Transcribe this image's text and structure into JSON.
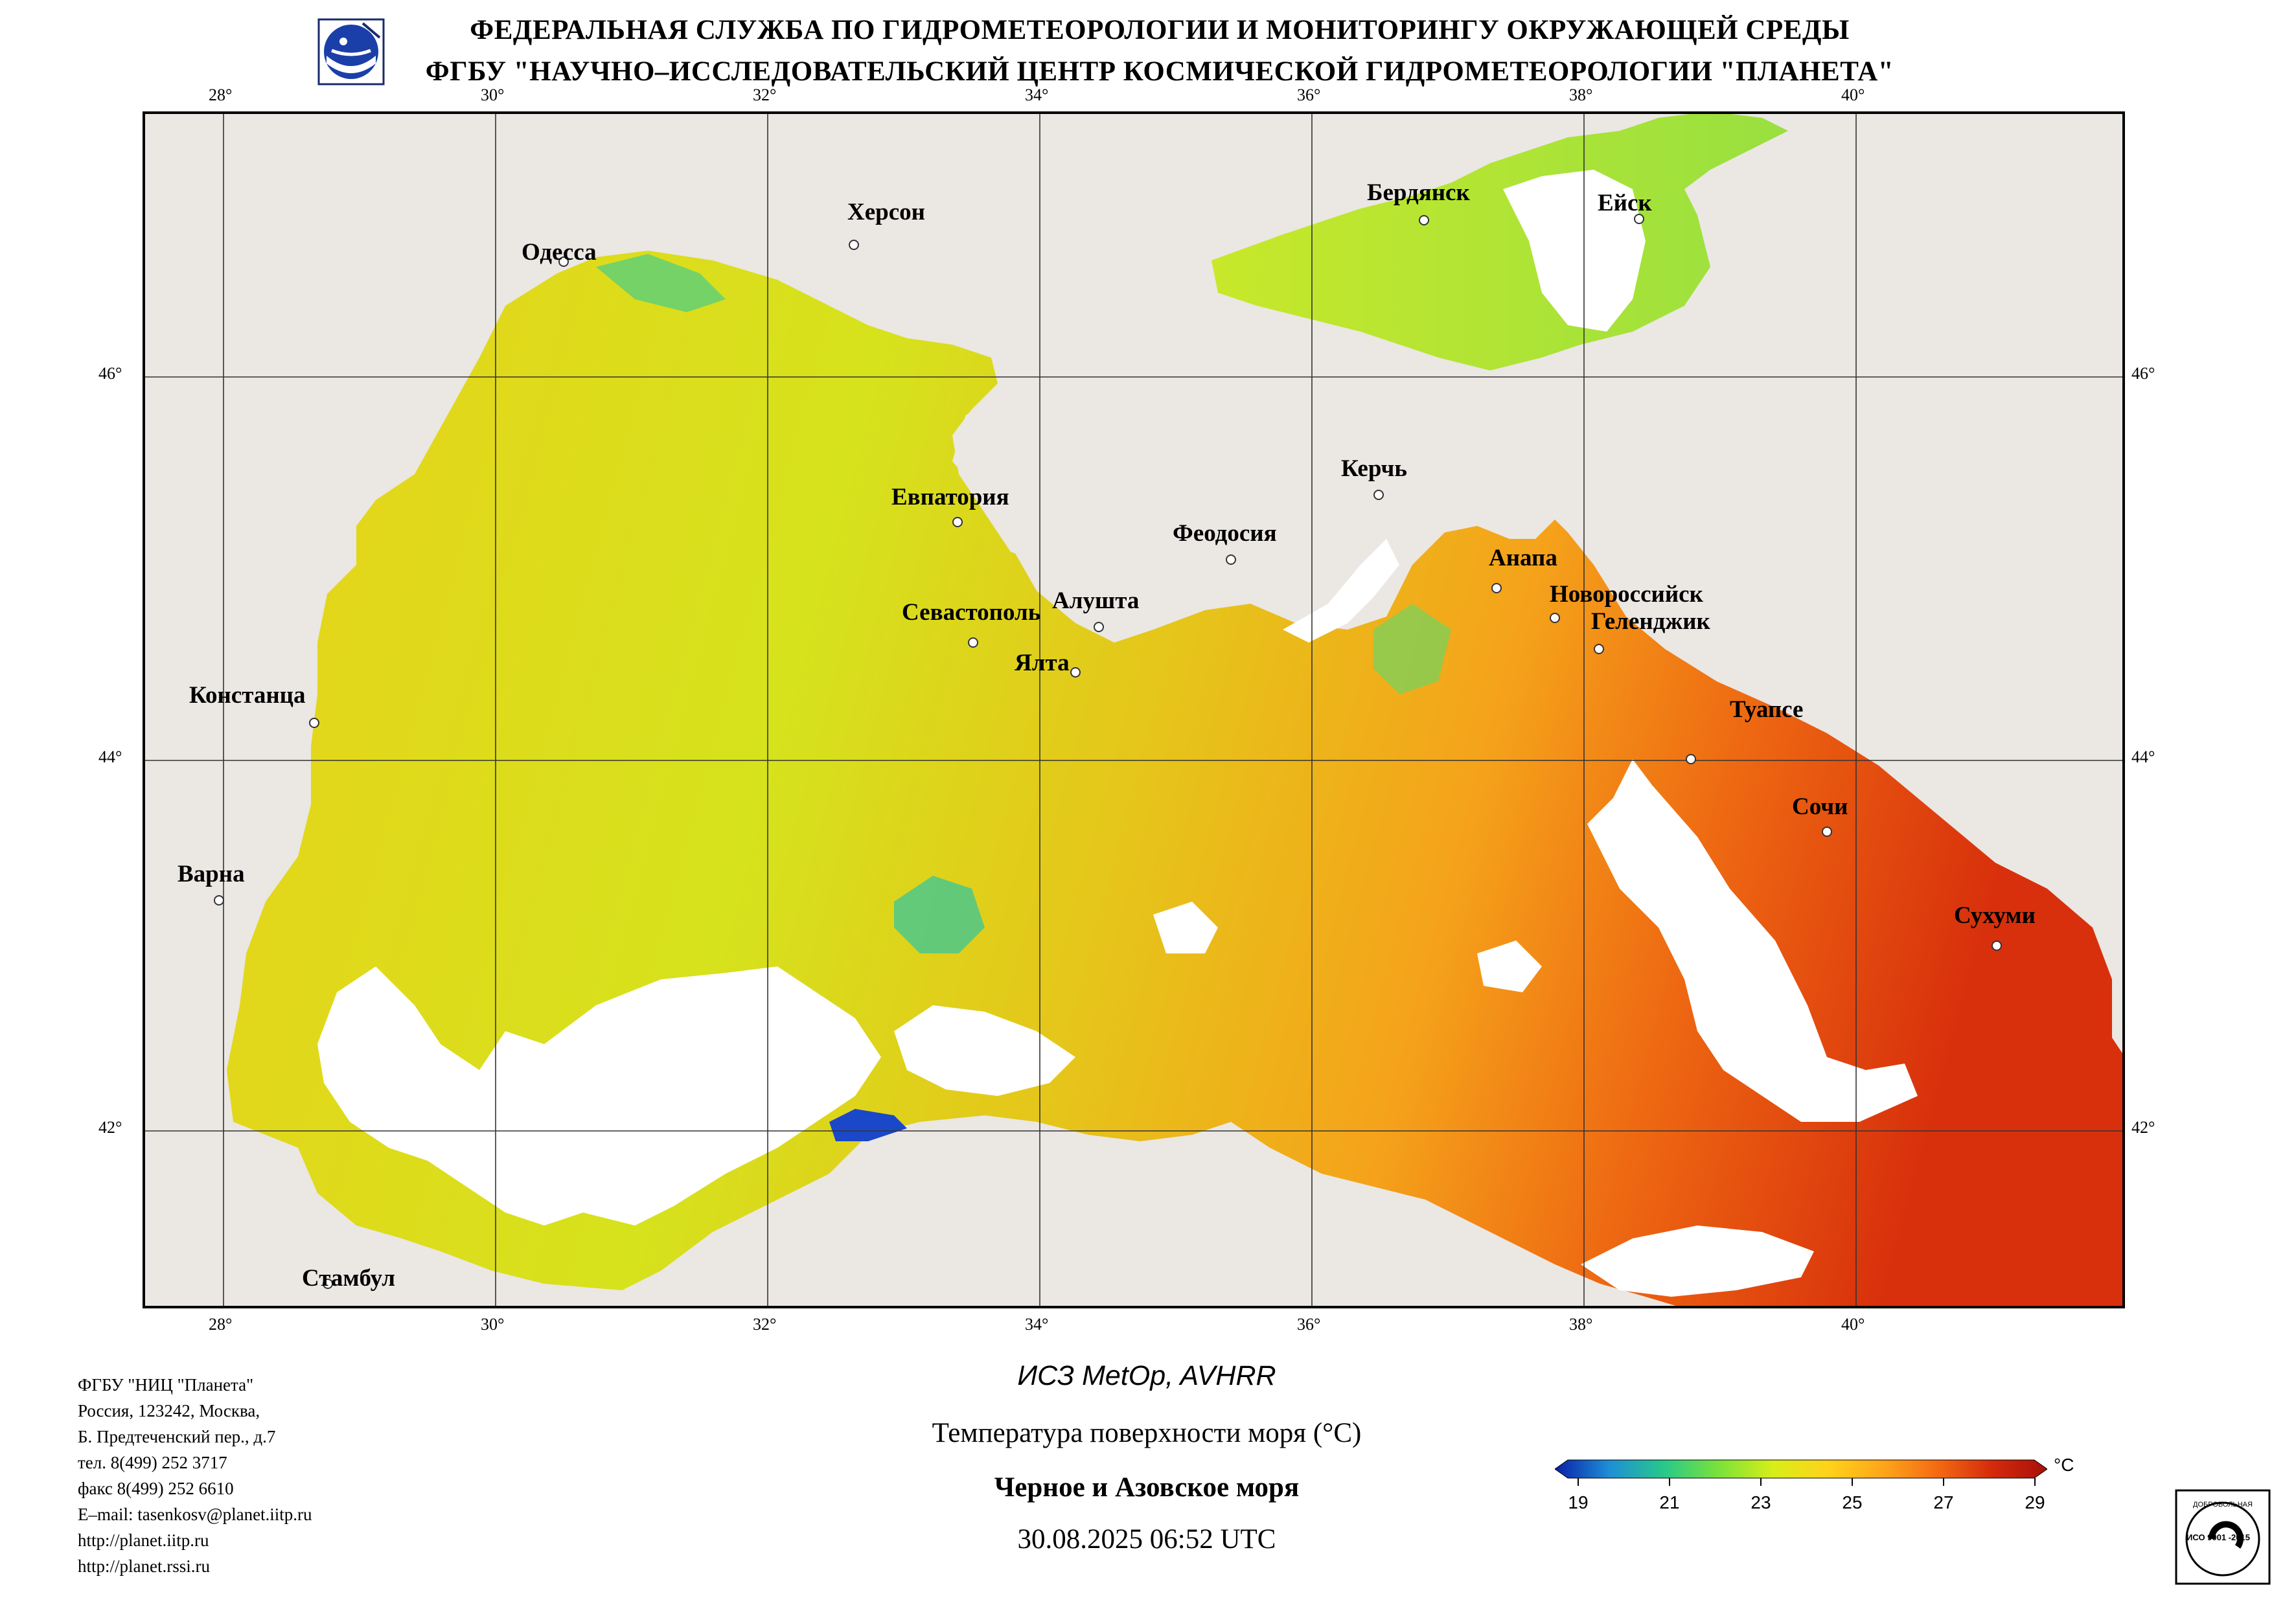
{
  "header": {
    "line1": "ФЕДЕРАЛЬНАЯ СЛУЖБА ПО ГИДРОМЕТЕОРОЛОГИИ И МОНИТОРИНГУ ОКРУЖАЮЩЕЙ СРЕДЫ",
    "line2": "ФГБУ \"НАУЧНО–ИССЛЕДОВАТЕЛЬСКИЙ ЦЕНТР КОСМИЧЕСКОЙ ГИДРОМЕТЕОРОЛОГИИ \"ПЛАНЕТА\"",
    "logo_icon": "planeta-logo-icon"
  },
  "map": {
    "longitude_ticks": [
      "28°",
      "30°",
      "32°",
      "34°",
      "36°",
      "38°",
      "40°"
    ],
    "latitude_ticks": [
      "46°",
      "44°",
      "42°"
    ],
    "cities": [
      {
        "name": "Одесса"
      },
      {
        "name": "Херсон"
      },
      {
        "name": "Бердянск"
      },
      {
        "name": "Ейск"
      },
      {
        "name": "Евпатория"
      },
      {
        "name": "Керчь"
      },
      {
        "name": "Феодосия"
      },
      {
        "name": "Анапа"
      },
      {
        "name": "Новороссийск"
      },
      {
        "name": "Геленджик"
      },
      {
        "name": "Севастополь"
      },
      {
        "name": "Алушта"
      },
      {
        "name": "Ялта"
      },
      {
        "name": "Констанца"
      },
      {
        "name": "Туапсе"
      },
      {
        "name": "Сочи"
      },
      {
        "name": "Варна"
      },
      {
        "name": "Сухуми"
      },
      {
        "name": "Стамбул"
      }
    ],
    "colors": {
      "land": "#ebe7e3",
      "cloud": "#ffffff",
      "grid": "#333333",
      "frame": "#000000"
    }
  },
  "info": {
    "lines": [
      "ФГБУ \"НИЦ \"Планета\"",
      "Россия, 123242, Москва,",
      "Б. Предтеченский пер., д.7",
      "тел. 8(499) 252 3717",
      "факс 8(499) 252 6610",
      "E–mail: tasenkosv@planet.iitp.ru",
      "http://planet.iitp.ru",
      "http://planet.rssi.ru"
    ]
  },
  "caption": {
    "satellite": "ИСЗ MetOp, AVHRR",
    "parameter": "Температура поверхности моря (°C)",
    "region": "Черное и Азовское моря",
    "datetime": "30.08.2025 06:52 UTC"
  },
  "colorbar": {
    "unit": "°C",
    "ticks": [
      "19",
      "21",
      "23",
      "25",
      "27",
      "29"
    ],
    "min": 19,
    "max": 29,
    "stops": [
      "#0a1fa8",
      "#1e8fd6",
      "#27c98a",
      "#7be23a",
      "#d8ee18",
      "#ffd21a",
      "#ffa51a",
      "#f46a12",
      "#d42a0c",
      "#a8100a"
    ]
  },
  "certificate": {
    "icon": "iso-certificate-icon",
    "top_text": "ДОБРОВОЛЬНАЯ",
    "mid_text": "ИСО 9001 -2015"
  }
}
